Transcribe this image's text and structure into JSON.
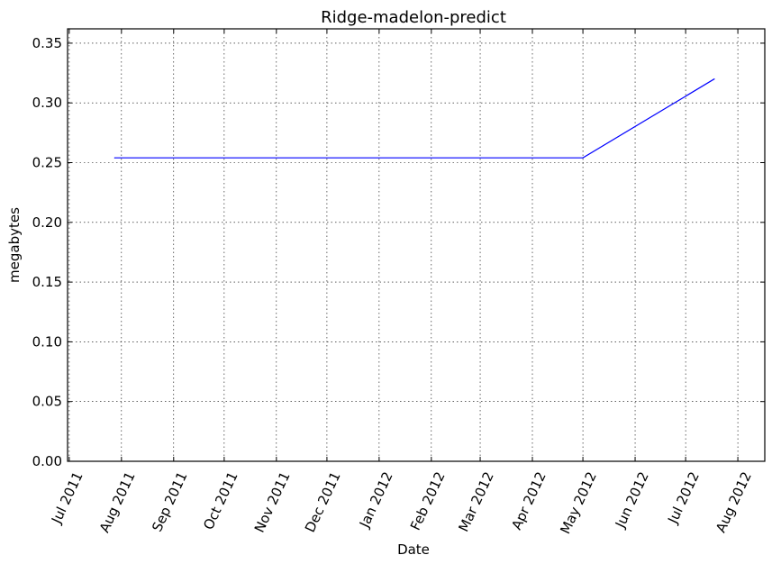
{
  "chart_data": {
    "type": "line",
    "title": "Ridge-madelon-predict",
    "xlabel": "Date",
    "ylabel": "megabytes",
    "x_ticks": [
      "Jul 2011",
      "Aug 2011",
      "Sep 2011",
      "Oct 2011",
      "Nov 2011",
      "Dec 2011",
      "Jan 2012",
      "Feb 2012",
      "Mar 2012",
      "Apr 2012",
      "May 2012",
      "Jun 2012",
      "Jul 2012",
      "Aug 2012"
    ],
    "x_tick_dates": [
      "2011-07-01",
      "2011-08-01",
      "2011-09-01",
      "2011-10-01",
      "2011-11-01",
      "2011-12-01",
      "2012-01-01",
      "2012-02-01",
      "2012-03-01",
      "2012-04-01",
      "2012-05-01",
      "2012-06-01",
      "2012-07-01",
      "2012-08-01"
    ],
    "xlim": [
      "2011-06-30",
      "2012-08-17"
    ],
    "y_ticks": [
      "0.00",
      "0.05",
      "0.10",
      "0.15",
      "0.20",
      "0.25",
      "0.30",
      "0.35"
    ],
    "ylim": [
      0,
      0.362
    ],
    "grid": true,
    "series": [
      {
        "color": "#0000ff",
        "points": [
          {
            "x": "2011-07-28",
            "y": 0.254
          },
          {
            "x": "2012-05-01",
            "y": 0.254
          },
          {
            "x": "2012-07-18",
            "y": 0.32
          }
        ]
      }
    ]
  }
}
